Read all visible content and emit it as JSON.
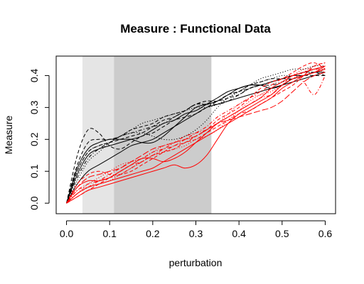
{
  "chart_data": {
    "type": "line",
    "title": "Measure : Functional Data",
    "xlabel": "perturbation",
    "ylabel": "Measure",
    "xlim": [
      -0.024,
      0.624
    ],
    "ylim": [
      -0.033,
      0.461
    ],
    "x_ticks": [
      0.0,
      0.1,
      0.2,
      0.3,
      0.4,
      0.5,
      0.6
    ],
    "x_tick_labels": [
      "0.0",
      "0.1",
      "0.2",
      "0.3",
      "0.4",
      "0.5",
      "0.6"
    ],
    "y_ticks": [
      0.0,
      0.1,
      0.2,
      0.3,
      0.4
    ],
    "y_tick_labels": [
      "0.0",
      "0.1",
      "0.2",
      "0.3",
      "0.4"
    ],
    "grid": false,
    "shaded_regions": [
      {
        "x_range": [
          0.037,
          0.11
        ],
        "color": "#e5e5e5"
      },
      {
        "x_range": [
          0.11,
          0.336
        ],
        "color": "#cccccc"
      }
    ],
    "x": [
      0.0,
      0.025,
      0.05,
      0.075,
      0.1,
      0.125,
      0.15,
      0.175,
      0.2,
      0.225,
      0.25,
      0.275,
      0.3,
      0.325,
      0.35,
      0.375,
      0.4,
      0.425,
      0.45,
      0.475,
      0.5,
      0.525,
      0.55,
      0.575,
      0.6
    ],
    "series": [
      {
        "color": "#000000",
        "dash": "solid",
        "values": [
          0.0,
          0.06,
          0.1,
          0.12,
          0.14,
          0.16,
          0.18,
          0.19,
          0.2,
          0.22,
          0.24,
          0.26,
          0.28,
          0.3,
          0.31,
          0.32,
          0.33,
          0.34,
          0.35,
          0.36,
          0.37,
          0.38,
          0.39,
          0.4,
          0.41
        ]
      },
      {
        "color": "#000000",
        "dash": "solid",
        "values": [
          0.0,
          0.09,
          0.15,
          0.17,
          0.18,
          0.19,
          0.2,
          0.21,
          0.23,
          0.25,
          0.26,
          0.28,
          0.29,
          0.31,
          0.33,
          0.35,
          0.36,
          0.37,
          0.37,
          0.38,
          0.39,
          0.4,
          0.4,
          0.41,
          0.42
        ]
      },
      {
        "color": "#000000",
        "dash": "solid",
        "values": [
          0.0,
          0.11,
          0.17,
          0.19,
          0.2,
          0.2,
          0.2,
          0.19,
          0.19,
          0.21,
          0.24,
          0.27,
          0.3,
          0.31,
          0.32,
          0.34,
          0.36,
          0.37,
          0.37,
          0.36,
          0.37,
          0.39,
          0.4,
          0.41,
          0.41
        ]
      },
      {
        "color": "#000000",
        "dash": "dashed",
        "values": [
          0.0,
          0.15,
          0.23,
          0.22,
          0.18,
          0.17,
          0.19,
          0.21,
          0.22,
          0.24,
          0.26,
          0.27,
          0.28,
          0.3,
          0.32,
          0.34,
          0.35,
          0.36,
          0.37,
          0.38,
          0.39,
          0.39,
          0.4,
          0.4,
          0.4
        ]
      },
      {
        "color": "#000000",
        "dash": "dashed",
        "values": [
          0.0,
          0.1,
          0.16,
          0.18,
          0.19,
          0.2,
          0.21,
          0.22,
          0.24,
          0.26,
          0.27,
          0.29,
          0.31,
          0.32,
          0.32,
          0.33,
          0.34,
          0.36,
          0.37,
          0.38,
          0.39,
          0.4,
          0.41,
          0.41,
          0.4
        ]
      },
      {
        "color": "#000000",
        "dash": "dashed",
        "values": [
          0.0,
          0.12,
          0.19,
          0.2,
          0.2,
          0.21,
          0.23,
          0.24,
          0.25,
          0.27,
          0.28,
          0.29,
          0.31,
          0.31,
          0.32,
          0.34,
          0.35,
          0.37,
          0.38,
          0.39,
          0.39,
          0.4,
          0.41,
          0.42,
          0.43
        ]
      },
      {
        "color": "#000000",
        "dash": "dotdash",
        "values": [
          0.0,
          0.08,
          0.14,
          0.17,
          0.19,
          0.21,
          0.22,
          0.23,
          0.24,
          0.25,
          0.27,
          0.29,
          0.31,
          0.31,
          0.31,
          0.32,
          0.34,
          0.36,
          0.37,
          0.37,
          0.38,
          0.39,
          0.4,
          0.41,
          0.42
        ]
      },
      {
        "color": "#000000",
        "dash": "dotted",
        "values": [
          0.0,
          0.07,
          0.13,
          0.16,
          0.19,
          0.21,
          0.22,
          0.22,
          0.21,
          0.2,
          0.2,
          0.21,
          0.23,
          0.26,
          0.3,
          0.33,
          0.35,
          0.37,
          0.38,
          0.39,
          0.4,
          0.4,
          0.41,
          0.41,
          0.42
        ]
      },
      {
        "color": "#000000",
        "dash": "dotted",
        "values": [
          0.0,
          0.1,
          0.16,
          0.18,
          0.19,
          0.21,
          0.23,
          0.25,
          0.26,
          0.27,
          0.28,
          0.29,
          0.3,
          0.3,
          0.31,
          0.33,
          0.35,
          0.37,
          0.39,
          0.4,
          0.41,
          0.42,
          0.42,
          0.43,
          0.43
        ]
      },
      {
        "color": "#ff0000",
        "dash": "solid",
        "values": [
          0.0,
          0.02,
          0.04,
          0.05,
          0.06,
          0.07,
          0.08,
          0.09,
          0.1,
          0.11,
          0.12,
          0.11,
          0.12,
          0.15,
          0.2,
          0.25,
          0.28,
          0.3,
          0.32,
          0.34,
          0.37,
          0.39,
          0.4,
          0.41,
          0.42
        ]
      },
      {
        "color": "#ff0000",
        "dash": "solid",
        "values": [
          0.0,
          0.03,
          0.05,
          0.06,
          0.07,
          0.08,
          0.09,
          0.1,
          0.11,
          0.13,
          0.15,
          0.17,
          0.19,
          0.21,
          0.23,
          0.25,
          0.27,
          0.29,
          0.31,
          0.33,
          0.36,
          0.38,
          0.4,
          0.41,
          0.43
        ]
      },
      {
        "color": "#ff0000",
        "dash": "solid",
        "values": [
          0.0,
          0.05,
          0.07,
          0.07,
          0.08,
          0.1,
          0.12,
          0.14,
          0.14,
          0.13,
          0.14,
          0.16,
          0.19,
          0.22,
          0.25,
          0.27,
          0.29,
          0.31,
          0.33,
          0.36,
          0.38,
          0.4,
          0.41,
          0.42,
          0.43
        ]
      },
      {
        "color": "#ff0000",
        "dash": "dashed",
        "values": [
          0.0,
          0.02,
          0.04,
          0.06,
          0.08,
          0.1,
          0.12,
          0.13,
          0.15,
          0.16,
          0.17,
          0.19,
          0.2,
          0.22,
          0.24,
          0.26,
          0.28,
          0.29,
          0.31,
          0.33,
          0.35,
          0.37,
          0.4,
          0.43,
          0.44
        ]
      },
      {
        "color": "#ff0000",
        "dash": "dashed",
        "values": [
          0.0,
          0.06,
          0.09,
          0.1,
          0.09,
          0.09,
          0.1,
          0.12,
          0.14,
          0.16,
          0.18,
          0.19,
          0.21,
          0.23,
          0.26,
          0.28,
          0.3,
          0.33,
          0.36,
          0.38,
          0.39,
          0.41,
          0.43,
          0.44,
          0.42
        ]
      },
      {
        "color": "#ff0000",
        "dash": "longdash",
        "values": [
          0.0,
          0.05,
          0.08,
          0.09,
          0.1,
          0.11,
          0.13,
          0.15,
          0.17,
          0.18,
          0.19,
          0.2,
          0.21,
          0.23,
          0.25,
          0.26,
          0.27,
          0.28,
          0.29,
          0.3,
          0.32,
          0.35,
          0.38,
          0.4,
          0.41
        ]
      },
      {
        "color": "#ff0000",
        "dash": "dotdash",
        "values": [
          0.0,
          0.04,
          0.06,
          0.07,
          0.08,
          0.09,
          0.11,
          0.13,
          0.15,
          0.17,
          0.19,
          0.21,
          0.22,
          0.23,
          0.25,
          0.27,
          0.29,
          0.31,
          0.33,
          0.34,
          0.37,
          0.4,
          0.38,
          0.34,
          0.4
        ]
      },
      {
        "color": "#ff0000",
        "dash": "dotdash",
        "values": [
          0.0,
          0.03,
          0.05,
          0.07,
          0.09,
          0.11,
          0.13,
          0.14,
          0.16,
          0.17,
          0.18,
          0.2,
          0.22,
          0.24,
          0.27,
          0.29,
          0.31,
          0.33,
          0.35,
          0.37,
          0.39,
          0.4,
          0.41,
          0.42,
          0.42
        ]
      },
      {
        "color": "#ff0000",
        "dash": "dotted",
        "values": [
          0.0,
          0.03,
          0.06,
          0.08,
          0.1,
          0.12,
          0.13,
          0.14,
          0.16,
          0.18,
          0.19,
          0.2,
          0.21,
          0.23,
          0.25,
          0.28,
          0.31,
          0.33,
          0.34,
          0.35,
          0.37,
          0.39,
          0.41,
          0.43,
          0.44
        ]
      },
      {
        "color": "#ff0000",
        "dash": "dotted",
        "values": [
          0.0,
          0.04,
          0.05,
          0.06,
          0.07,
          0.09,
          0.11,
          0.13,
          0.15,
          0.16,
          0.17,
          0.18,
          0.2,
          0.21,
          0.23,
          0.26,
          0.29,
          0.32,
          0.34,
          0.36,
          0.38,
          0.4,
          0.42,
          0.42,
          0.41
        ]
      }
    ]
  }
}
